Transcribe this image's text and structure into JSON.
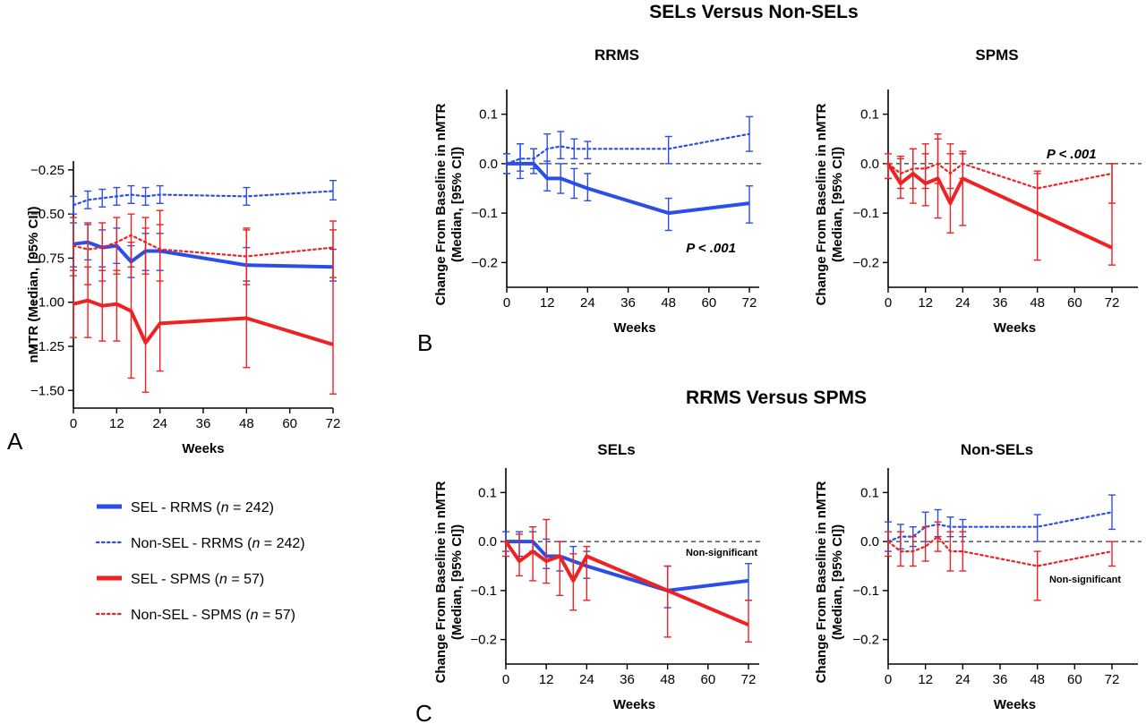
{
  "figure": {
    "section_b_title": "SELs Versus Non-SELs",
    "section_c_title": "RRMS Versus SPMS",
    "panel_letters": {
      "a": "A",
      "b": "B",
      "c": "C"
    }
  },
  "colors": {
    "rrms": "#2b4ee8",
    "spms": "#ee2222",
    "axis": "#000000"
  },
  "legend": {
    "items": [
      {
        "prefix": "SEL - RRMS (",
        "n_symbol": "n",
        "suffix": " = 242)",
        "color": "#2b4ee8",
        "style": "solid"
      },
      {
        "prefix": "Non-SEL - RRMS (",
        "n_symbol": "n",
        "suffix": " = 242)",
        "color": "#2b4ee8",
        "style": "dotted"
      },
      {
        "prefix": "SEL - SPMS (",
        "n_symbol": "n",
        "suffix": " = 57)",
        "color": "#ee2222",
        "style": "solid"
      },
      {
        "prefix": "Non-SEL - SPMS (",
        "n_symbol": "n",
        "suffix": " = 57)",
        "color": "#ee2222",
        "style": "dotted"
      }
    ]
  },
  "chart_data": [
    {
      "id": "A",
      "type": "line",
      "title": "",
      "xlabel": "Weeks",
      "ylabel": "nMTR (Median, [95% CI])",
      "xlim": [
        0,
        72
      ],
      "ylim": [
        -1.6,
        -0.2
      ],
      "xticks": [
        0,
        12,
        24,
        36,
        48,
        60,
        72
      ],
      "yticks": [
        -0.25,
        -0.5,
        -0.75,
        -1.0,
        -1.25,
        -1.5
      ],
      "ytick_labels": [
        "−0.25",
        "−0.50",
        "−0.75",
        "−1.00",
        "−1.25",
        "−1.50"
      ],
      "zero_line": false,
      "series": [
        {
          "name": "Non-SEL - RRMS",
          "color": "#2b4ee8",
          "style": "dotted",
          "x": [
            0,
            4,
            8,
            12,
            16,
            20,
            24,
            48,
            72
          ],
          "y": [
            -0.45,
            -0.42,
            -0.41,
            -0.4,
            -0.39,
            -0.4,
            -0.39,
            -0.4,
            -0.37
          ],
          "lo": [
            -0.5,
            -0.47,
            -0.46,
            -0.45,
            -0.44,
            -0.45,
            -0.44,
            -0.45,
            -0.42
          ],
          "hi": [
            -0.4,
            -0.37,
            -0.36,
            -0.35,
            -0.34,
            -0.35,
            -0.34,
            -0.35,
            -0.31
          ]
        },
        {
          "name": "SEL - RRMS",
          "color": "#2b4ee8",
          "style": "solid",
          "x": [
            0,
            4,
            8,
            12,
            16,
            20,
            24,
            48,
            72
          ],
          "y": [
            -0.67,
            -0.66,
            -0.69,
            -0.68,
            -0.77,
            -0.71,
            -0.71,
            -0.79,
            -0.8
          ],
          "lo": [
            -0.8,
            -0.76,
            -0.8,
            -0.78,
            -0.86,
            -0.82,
            -0.82,
            -0.88,
            -0.88
          ],
          "hi": [
            -0.55,
            -0.56,
            -0.59,
            -0.58,
            -0.68,
            -0.61,
            -0.61,
            -0.69,
            -0.7
          ]
        },
        {
          "name": "Non-SEL - SPMS",
          "color": "#ee2222",
          "style": "dotted",
          "x": [
            0,
            4,
            8,
            12,
            16,
            20,
            24,
            48,
            72
          ],
          "y": [
            -0.68,
            -0.7,
            -0.69,
            -0.66,
            -0.62,
            -0.66,
            -0.7,
            -0.74,
            -0.69
          ],
          "lo": [
            -0.85,
            -0.9,
            -0.88,
            -0.84,
            -0.8,
            -0.84,
            -0.88,
            -0.9,
            -0.86
          ],
          "hi": [
            -0.52,
            -0.55,
            -0.55,
            -0.52,
            -0.5,
            -0.52,
            -0.56,
            -0.59,
            -0.54
          ]
        },
        {
          "name": "SEL - SPMS",
          "color": "#ee2222",
          "style": "solid",
          "x": [
            0,
            4,
            8,
            12,
            16,
            20,
            24,
            48,
            72
          ],
          "y": [
            -1.01,
            -0.99,
            -1.02,
            -1.01,
            -1.05,
            -1.23,
            -1.12,
            -1.09,
            -1.24
          ],
          "lo": [
            -1.2,
            -1.2,
            -1.22,
            -1.22,
            -1.43,
            -1.51,
            -1.39,
            -1.37,
            -1.52
          ],
          "hi": [
            -0.82,
            -0.8,
            -0.82,
            -0.82,
            -0.66,
            -0.58,
            -0.48,
            -0.58,
            -0.59
          ]
        }
      ]
    },
    {
      "id": "B-RRMS",
      "type": "line",
      "title": "RRMS",
      "xlabel": "Weeks",
      "ylabel": "Change From Baseline in nMTR (Median, [95% CI])",
      "xlim": [
        0,
        72
      ],
      "ylim": [
        -0.25,
        0.15
      ],
      "xticks": [
        0,
        12,
        24,
        36,
        48,
        60,
        72
      ],
      "yticks": [
        0.1,
        0.0,
        -0.1,
        -0.2
      ],
      "ytick_labels": [
        "0.1",
        "0.0",
        "−0.1",
        "−0.2"
      ],
      "zero_line": true,
      "annotation": {
        "text": "P < .001",
        "x": 68,
        "y": -0.17
      },
      "series": [
        {
          "name": "Non-SEL - RRMS",
          "color": "#2b4ee8",
          "style": "dotted",
          "x": [
            0,
            4,
            8,
            12,
            16,
            20,
            24,
            48,
            72
          ],
          "y": [
            0.0,
            0.01,
            0.01,
            0.03,
            0.035,
            0.03,
            0.03,
            0.03,
            0.06
          ],
          "lo": [
            -0.02,
            -0.015,
            -0.01,
            0.0,
            0.01,
            0.01,
            0.01,
            0.0,
            0.025
          ],
          "hi": [
            0.02,
            0.04,
            0.03,
            0.06,
            0.065,
            0.05,
            0.045,
            0.055,
            0.095
          ]
        },
        {
          "name": "SEL - RRMS",
          "color": "#2b4ee8",
          "style": "solid",
          "x": [
            0,
            4,
            8,
            12,
            16,
            20,
            24,
            48,
            72
          ],
          "y": [
            0.0,
            0.0,
            0.0,
            -0.03,
            -0.03,
            -0.04,
            -0.05,
            -0.1,
            -0.08
          ],
          "lo": [
            -0.02,
            -0.03,
            -0.02,
            -0.055,
            -0.06,
            -0.07,
            -0.075,
            -0.135,
            -0.12
          ],
          "hi": [
            0.02,
            0.04,
            0.03,
            0.005,
            0.0,
            -0.01,
            -0.02,
            -0.07,
            -0.045
          ]
        }
      ]
    },
    {
      "id": "B-SPMS",
      "type": "line",
      "title": "SPMS",
      "xlabel": "Weeks",
      "ylabel": "Change From Baseline in nMTR (Median, [95% CI])",
      "xlim": [
        0,
        72
      ],
      "ylim": [
        -0.25,
        0.15
      ],
      "xticks": [
        0,
        12,
        24,
        36,
        48,
        60,
        72
      ],
      "yticks": [
        0.1,
        0.0,
        -0.1,
        -0.2
      ],
      "ytick_labels": [
        "0.1",
        "0.0",
        "−0.1",
        "−0.2"
      ],
      "zero_line": true,
      "annotation": {
        "text": "P < .001",
        "x": 67,
        "y": 0.02
      },
      "series": [
        {
          "name": "Non-SEL - SPMS",
          "color": "#ee2222",
          "style": "dotted",
          "x": [
            0,
            4,
            8,
            12,
            16,
            20,
            24,
            48,
            72
          ],
          "y": [
            0.0,
            -0.02,
            -0.01,
            -0.01,
            0.0,
            -0.02,
            0.0,
            -0.05,
            -0.02
          ],
          "lo": [
            -0.03,
            -0.05,
            -0.05,
            -0.05,
            -0.04,
            -0.05,
            -0.03,
            -0.1,
            -0.08
          ],
          "hi": [
            0.02,
            0.01,
            0.03,
            0.02,
            0.05,
            0.02,
            0.02,
            -0.02,
            0.0
          ]
        },
        {
          "name": "SEL - SPMS",
          "color": "#ee2222",
          "style": "solid",
          "x": [
            0,
            4,
            8,
            12,
            16,
            20,
            24,
            48,
            72
          ],
          "y": [
            0.0,
            -0.04,
            -0.02,
            -0.04,
            -0.03,
            -0.08,
            -0.03,
            -0.1,
            -0.17
          ],
          "lo": [
            -0.03,
            -0.07,
            -0.08,
            -0.085,
            -0.11,
            -0.14,
            -0.125,
            -0.195,
            -0.205
          ],
          "hi": [
            0.0,
            0.015,
            0.03,
            0.04,
            0.06,
            0.04,
            0.025,
            -0.015,
            0.0
          ]
        }
      ]
    },
    {
      "id": "C-SELs",
      "type": "line",
      "title": "SELs",
      "xlabel": "Weeks",
      "ylabel": "Change From Baseline in nMTR (Median, [95% CI])",
      "xlim": [
        0,
        72
      ],
      "ylim": [
        -0.25,
        0.15
      ],
      "xticks": [
        0,
        12,
        24,
        36,
        48,
        60,
        72
      ],
      "yticks": [
        0.1,
        0.0,
        -0.1,
        -0.2
      ],
      "ytick_labels": [
        "0.1",
        "0.0",
        "−0.1",
        "−0.2"
      ],
      "zero_line": true,
      "annotation": {
        "text": "Non-significant",
        "x": 72,
        "y": -0.02
      },
      "series": [
        {
          "name": "SEL - RRMS",
          "color": "#2b4ee8",
          "style": "solid",
          "x": [
            0,
            4,
            8,
            12,
            16,
            20,
            24,
            48,
            72
          ],
          "y": [
            0.0,
            0.0,
            0.0,
            -0.03,
            -0.03,
            -0.04,
            -0.05,
            -0.1,
            -0.08
          ],
          "lo": [
            -0.02,
            -0.03,
            -0.02,
            -0.055,
            -0.06,
            -0.07,
            -0.075,
            -0.135,
            -0.12
          ],
          "hi": [
            0.02,
            0.02,
            0.02,
            0.005,
            0.0,
            -0.01,
            -0.02,
            -0.05,
            -0.045
          ]
        },
        {
          "name": "SEL - SPMS",
          "color": "#ee2222",
          "style": "solid",
          "x": [
            0,
            4,
            8,
            12,
            16,
            20,
            24,
            48,
            72
          ],
          "y": [
            0.0,
            -0.04,
            -0.02,
            -0.04,
            -0.03,
            -0.08,
            -0.03,
            -0.1,
            -0.17
          ],
          "lo": [
            -0.03,
            -0.07,
            -0.08,
            -0.085,
            -0.11,
            -0.14,
            -0.12,
            -0.195,
            -0.205
          ],
          "hi": [
            0.0,
            0.015,
            0.03,
            0.045,
            0.0,
            -0.025,
            -0.01,
            -0.05,
            -0.12
          ]
        }
      ]
    },
    {
      "id": "C-NonSELs",
      "type": "line",
      "title": "Non-SELs",
      "xlabel": "Weeks",
      "ylabel": "Change From Baseline in nMTR (Median, [95% CI])",
      "xlim": [
        0,
        72
      ],
      "ylim": [
        -0.25,
        0.15
      ],
      "xticks": [
        0,
        12,
        24,
        36,
        48,
        60,
        72
      ],
      "yticks": [
        0.1,
        0.0,
        -0.1,
        -0.2
      ],
      "ytick_labels": [
        "0.1",
        "0.0",
        "−0.1",
        "−0.2"
      ],
      "zero_line": true,
      "annotation": {
        "text": "Non-significant",
        "x": 72,
        "y": -0.075
      },
      "series": [
        {
          "name": "Non-SEL - RRMS",
          "color": "#2b4ee8",
          "style": "dotted",
          "x": [
            0,
            4,
            8,
            12,
            16,
            20,
            24,
            48,
            72
          ],
          "y": [
            0.0,
            0.01,
            0.01,
            0.03,
            0.035,
            0.03,
            0.03,
            0.03,
            0.06
          ],
          "lo": [
            -0.02,
            -0.015,
            -0.01,
            0.0,
            0.01,
            0.01,
            0.01,
            0.0,
            0.025
          ],
          "hi": [
            0.04,
            0.035,
            0.03,
            0.06,
            0.065,
            0.05,
            0.045,
            0.055,
            0.095
          ]
        },
        {
          "name": "Non-SEL - SPMS",
          "color": "#ee2222",
          "style": "dotted",
          "x": [
            0,
            4,
            8,
            12,
            16,
            20,
            24,
            48,
            72
          ],
          "y": [
            0.0,
            -0.02,
            -0.02,
            -0.01,
            0.01,
            -0.02,
            -0.02,
            -0.05,
            -0.02
          ],
          "lo": [
            -0.03,
            -0.05,
            -0.05,
            -0.04,
            -0.02,
            -0.06,
            -0.06,
            -0.12,
            -0.05
          ],
          "hi": [
            0.02,
            0.02,
            0.01,
            0.03,
            0.04,
            0.02,
            0.02,
            -0.02,
            0.0
          ]
        }
      ]
    }
  ]
}
